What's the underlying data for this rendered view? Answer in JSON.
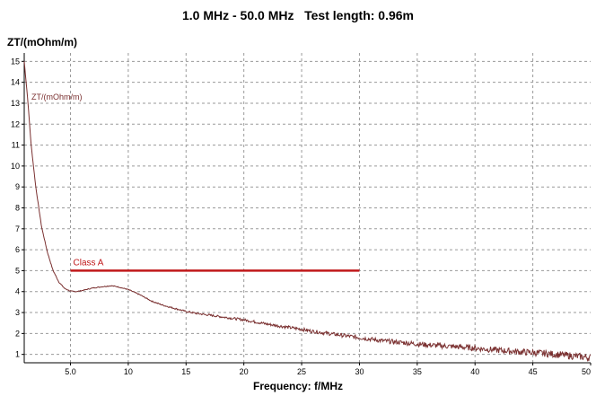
{
  "chart_data": {
    "type": "line",
    "title": "1.0 MHz - 50.0 MHz   Test length: 0.96m",
    "xlabel": "Frequency: f/MHz",
    "ylabel": "ZT/(mOhm/m)",
    "xlim": [
      1,
      50
    ],
    "ylim": [
      0.6,
      15.4
    ],
    "grid": true,
    "x_ticks": [
      "5.0",
      "10",
      "15",
      "20",
      "25",
      "30",
      "35",
      "40",
      "45",
      "50"
    ],
    "y_ticks": [
      "1",
      "2",
      "3",
      "4",
      "5",
      "6",
      "7",
      "8",
      "9",
      "10",
      "11",
      "12",
      "13",
      "14",
      "15"
    ],
    "series": [
      {
        "name": "ZT/(mOhm/m)",
        "color": "#7a3030",
        "x": [
          1,
          1.3,
          1.6,
          2,
          2.5,
          3,
          3.5,
          4,
          4.5,
          5,
          5.5,
          6,
          7,
          8,
          8.5,
          9,
          10,
          11,
          12,
          13,
          14,
          15,
          16,
          17,
          18,
          20,
          22,
          24,
          25,
          26,
          28,
          30,
          32,
          34,
          36,
          38,
          40,
          42,
          44,
          46,
          48,
          50
        ],
        "y": [
          15.0,
          13.2,
          11.0,
          9.0,
          7.1,
          5.9,
          5.0,
          4.45,
          4.15,
          4.02,
          4.0,
          4.05,
          4.18,
          4.25,
          4.28,
          4.24,
          4.1,
          3.85,
          3.55,
          3.35,
          3.2,
          3.05,
          2.95,
          2.88,
          2.8,
          2.65,
          2.45,
          2.28,
          2.2,
          2.1,
          1.95,
          1.8,
          1.65,
          1.55,
          1.45,
          1.38,
          1.3,
          1.2,
          1.12,
          1.05,
          0.95,
          0.85
        ]
      }
    ],
    "annotations": [
      {
        "text": "Class A",
        "x_start": 5,
        "x_end": 30,
        "y": 5.0,
        "color": "#c0181a"
      }
    ]
  }
}
